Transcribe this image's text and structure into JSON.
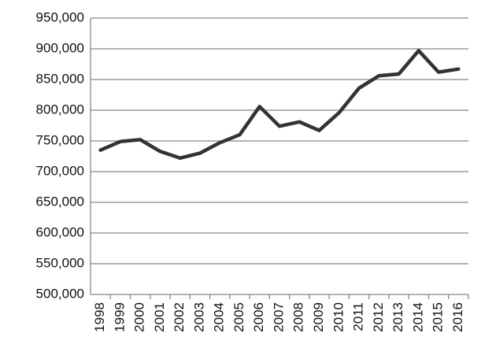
{
  "chart_data": {
    "type": "line",
    "categories": [
      "1998",
      "1999",
      "2000",
      "2001",
      "2002",
      "2003",
      "2004",
      "2005",
      "2006",
      "2007",
      "2008",
      "2009",
      "2010",
      "2011",
      "2012",
      "2013",
      "2014",
      "2015",
      "2016"
    ],
    "series": [
      {
        "color": "#333333",
        "values": [
          735000,
          749000,
          752000,
          733000,
          722000,
          730000,
          747000,
          760000,
          806000,
          774000,
          781000,
          767000,
          796000,
          836000,
          856000,
          859000,
          897000,
          862000,
          867000
        ]
      }
    ],
    "ylim": [
      500000,
      950000
    ],
    "yticks": [
      {
        "value": 500000,
        "label": "500,000"
      },
      {
        "value": 550000,
        "label": "550,000"
      },
      {
        "value": 600000,
        "label": "600,000"
      },
      {
        "value": 650000,
        "label": "650,000"
      },
      {
        "value": 700000,
        "label": "700,000"
      },
      {
        "value": 750000,
        "label": "750,000"
      },
      {
        "value": 800000,
        "label": "800,000"
      },
      {
        "value": 850000,
        "label": "850,000"
      },
      {
        "value": 900000,
        "label": "900,000"
      },
      {
        "value": 950000,
        "label": "950,000"
      }
    ],
    "grid": true
  }
}
